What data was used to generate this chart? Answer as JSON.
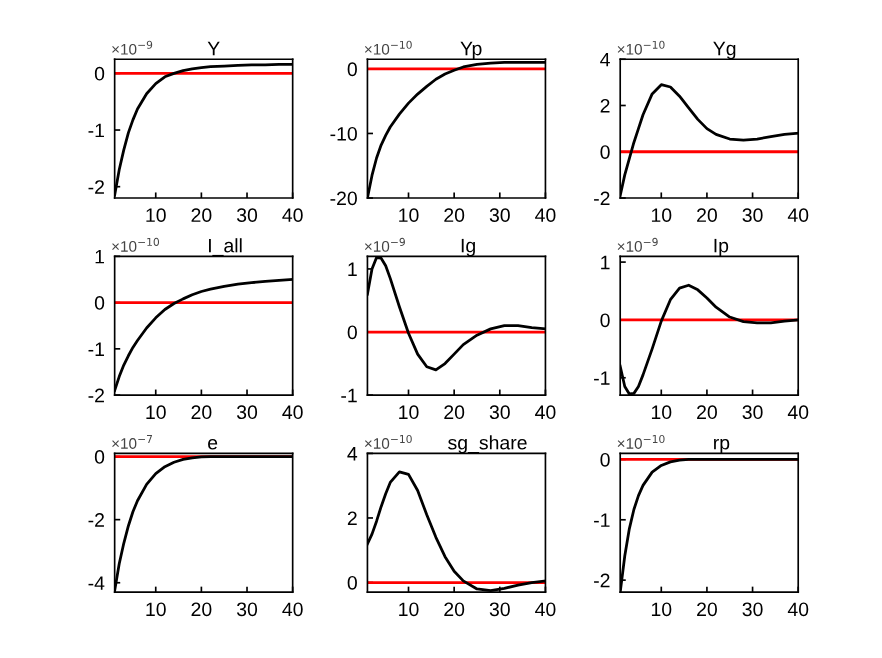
{
  "chart_data": [
    {
      "type": "line",
      "title": "Y",
      "annotations": [
        "×10$^{−9}$"
      ],
      "xlim": [
        1,
        40
      ],
      "xticks": [
        10,
        20,
        30,
        40
      ],
      "ylim": [
        -2.2,
        0.25
      ],
      "yticks": [
        -2,
        -1,
        0
      ],
      "grid": false,
      "ref_lines": [
        {
          "axis": "y",
          "value": 0,
          "color": "#ff0000"
        }
      ],
      "x": [
        1,
        2,
        3,
        4,
        5,
        6,
        8,
        10,
        12,
        14,
        16,
        18,
        20,
        22,
        25,
        28,
        31,
        34,
        37,
        40
      ],
      "series": [
        {
          "color": "#000000",
          "values": [
            -2.15,
            -1.7,
            -1.35,
            -1.05,
            -0.82,
            -0.63,
            -0.36,
            -0.18,
            -0.06,
            0.0,
            0.05,
            0.08,
            0.1,
            0.12,
            0.13,
            0.14,
            0.15,
            0.15,
            0.16,
            0.16
          ]
        }
      ]
    },
    {
      "type": "line",
      "title": "Yp",
      "annotations": [
        "×10$^{−10}$"
      ],
      "xlim": [
        1,
        40
      ],
      "xticks": [
        10,
        20,
        30,
        40
      ],
      "ylim": [
        -20,
        1.5
      ],
      "yticks": [
        -20,
        -10,
        0
      ],
      "grid": false,
      "ref_lines": [
        {
          "axis": "y",
          "value": 0,
          "color": "#ff0000"
        }
      ],
      "x": [
        1,
        2,
        3,
        4,
        5,
        6,
        8,
        10,
        12,
        14,
        16,
        18,
        20,
        22,
        25,
        28,
        31,
        34,
        37,
        40
      ],
      "series": [
        {
          "color": "#000000",
          "values": [
            -20,
            -16.5,
            -13.8,
            -11.8,
            -10.3,
            -9.0,
            -7.0,
            -5.3,
            -3.9,
            -2.7,
            -1.6,
            -0.8,
            -0.2,
            0.3,
            0.7,
            0.9,
            1.0,
            1.0,
            1.0,
            1.0
          ]
        }
      ]
    },
    {
      "type": "line",
      "title": "Yg",
      "annotations": [
        "×10$^{−10}$"
      ],
      "xlim": [
        1,
        40
      ],
      "xticks": [
        10,
        20,
        30,
        40
      ],
      "ylim": [
        -2,
        4
      ],
      "yticks": [
        -2,
        0,
        2,
        4
      ],
      "grid": false,
      "ref_lines": [
        {
          "axis": "y",
          "value": 0,
          "color": "#ff0000"
        }
      ],
      "x": [
        1,
        2,
        3,
        4,
        5,
        6,
        8,
        10,
        12,
        14,
        16,
        18,
        20,
        22,
        25,
        28,
        31,
        34,
        37,
        40
      ],
      "series": [
        {
          "color": "#000000",
          "values": [
            -1.9,
            -1.0,
            -0.3,
            0.4,
            1.0,
            1.6,
            2.5,
            2.9,
            2.8,
            2.4,
            1.9,
            1.4,
            1.0,
            0.75,
            0.55,
            0.5,
            0.55,
            0.65,
            0.75,
            0.8
          ]
        }
      ]
    },
    {
      "type": "line",
      "title": "I_all",
      "annotations": [
        "×10$^{−10}$"
      ],
      "xlim": [
        1,
        40
      ],
      "xticks": [
        10,
        20,
        30,
        40
      ],
      "ylim": [
        -2,
        1
      ],
      "yticks": [
        -2,
        -1,
        0,
        1
      ],
      "grid": false,
      "ref_lines": [
        {
          "axis": "y",
          "value": 0,
          "color": "#ff0000"
        }
      ],
      "x": [
        1,
        2,
        3,
        4,
        5,
        6,
        8,
        10,
        12,
        14,
        16,
        18,
        20,
        22,
        25,
        28,
        31,
        34,
        37,
        40
      ],
      "series": [
        {
          "color": "#000000",
          "values": [
            -1.9,
            -1.6,
            -1.35,
            -1.15,
            -0.97,
            -0.82,
            -0.55,
            -0.33,
            -0.15,
            -0.02,
            0.08,
            0.17,
            0.24,
            0.29,
            0.35,
            0.4,
            0.43,
            0.46,
            0.48,
            0.5
          ]
        }
      ]
    },
    {
      "type": "line",
      "title": "Ig",
      "annotations": [
        "×10$^{−9}$"
      ],
      "xlim": [
        1,
        40
      ],
      "xticks": [
        10,
        20,
        30,
        40
      ],
      "ylim": [
        -1,
        1.2
      ],
      "yticks": [
        -1,
        0,
        1
      ],
      "grid": false,
      "ref_lines": [
        {
          "axis": "y",
          "value": 0,
          "color": "#ff0000"
        }
      ],
      "x": [
        1,
        2,
        3,
        4,
        5,
        6,
        8,
        10,
        12,
        14,
        16,
        18,
        20,
        22,
        25,
        28,
        31,
        34,
        37,
        40
      ],
      "series": [
        {
          "color": "#000000",
          "values": [
            0.6,
            1.0,
            1.18,
            1.17,
            1.05,
            0.85,
            0.4,
            -0.02,
            -0.35,
            -0.55,
            -0.6,
            -0.5,
            -0.35,
            -0.2,
            -0.05,
            0.05,
            0.1,
            0.1,
            0.07,
            0.05
          ]
        }
      ]
    },
    {
      "type": "line",
      "title": "Ip",
      "annotations": [
        "×10$^{−9}$"
      ],
      "xlim": [
        1,
        40
      ],
      "xticks": [
        10,
        20,
        30,
        40
      ],
      "ylim": [
        -1.3,
        1.1
      ],
      "yticks": [
        -1,
        0,
        1
      ],
      "grid": false,
      "ref_lines": [
        {
          "axis": "y",
          "value": 0,
          "color": "#ff0000"
        }
      ],
      "x": [
        1,
        2,
        3,
        4,
        5,
        6,
        8,
        10,
        12,
        14,
        16,
        18,
        20,
        22,
        25,
        28,
        31,
        34,
        37,
        40
      ],
      "series": [
        {
          "color": "#000000",
          "values": [
            -0.8,
            -1.15,
            -1.28,
            -1.27,
            -1.15,
            -0.95,
            -0.5,
            -0.02,
            0.35,
            0.55,
            0.6,
            0.52,
            0.38,
            0.22,
            0.05,
            -0.03,
            -0.05,
            -0.05,
            -0.02,
            0.0
          ]
        }
      ]
    },
    {
      "type": "line",
      "title": "e",
      "annotations": [
        "×10$^{−7}$"
      ],
      "xlim": [
        1,
        40
      ],
      "xticks": [
        10,
        20,
        30,
        40
      ],
      "ylim": [
        -4.3,
        0.1
      ],
      "yticks": [
        -4,
        -2,
        0
      ],
      "grid": false,
      "ref_lines": [
        {
          "axis": "y",
          "value": 0,
          "color": "#ff0000"
        }
      ],
      "x": [
        1,
        2,
        3,
        4,
        5,
        6,
        8,
        10,
        12,
        14,
        16,
        18,
        20,
        22,
        25,
        28,
        31,
        34,
        37,
        40
      ],
      "series": [
        {
          "color": "#000000",
          "values": [
            -4.25,
            -3.4,
            -2.75,
            -2.2,
            -1.75,
            -1.4,
            -0.88,
            -0.54,
            -0.32,
            -0.18,
            -0.09,
            -0.04,
            -0.01,
            0,
            0,
            0,
            0,
            0,
            0,
            0
          ]
        }
      ]
    },
    {
      "type": "line",
      "title": "sg_share",
      "annotations": [
        "×10$^{−10}$"
      ],
      "xlim": [
        1,
        40
      ],
      "xticks": [
        10,
        20,
        30,
        40
      ],
      "ylim": [
        -0.3,
        4
      ],
      "yticks": [
        0,
        2,
        4
      ],
      "grid": false,
      "ref_lines": [
        {
          "axis": "y",
          "value": 0,
          "color": "#ff0000"
        }
      ],
      "x": [
        1,
        2,
        3,
        4,
        5,
        6,
        8,
        10,
        12,
        14,
        16,
        18,
        20,
        22,
        25,
        28,
        31,
        34,
        37,
        40
      ],
      "series": [
        {
          "color": "#000000",
          "values": [
            1.2,
            1.5,
            1.9,
            2.35,
            2.75,
            3.1,
            3.43,
            3.35,
            2.85,
            2.1,
            1.4,
            0.8,
            0.35,
            0.05,
            -0.2,
            -0.25,
            -0.18,
            -0.08,
            0.0,
            0.05
          ]
        }
      ]
    },
    {
      "type": "line",
      "title": "rp",
      "annotations": [
        "×10$^{−10}$"
      ],
      "xlim": [
        1,
        40
      ],
      "xticks": [
        10,
        20,
        30,
        40
      ],
      "ylim": [
        -2.2,
        0.1
      ],
      "yticks": [
        -2,
        -1,
        0
      ],
      "grid": false,
      "ref_lines": [
        {
          "axis": "y",
          "value": 0,
          "color": "#ff0000"
        }
      ],
      "x": [
        1,
        2,
        3,
        4,
        5,
        6,
        8,
        10,
        12,
        14,
        16,
        18,
        20,
        22,
        25,
        28,
        31,
        34,
        37,
        40
      ],
      "series": [
        {
          "color": "#000000",
          "values": [
            -2.2,
            -1.6,
            -1.15,
            -0.83,
            -0.6,
            -0.43,
            -0.21,
            -0.1,
            -0.04,
            -0.01,
            0,
            0,
            0,
            0,
            0,
            0,
            0,
            0,
            0,
            0
          ]
        }
      ]
    }
  ]
}
